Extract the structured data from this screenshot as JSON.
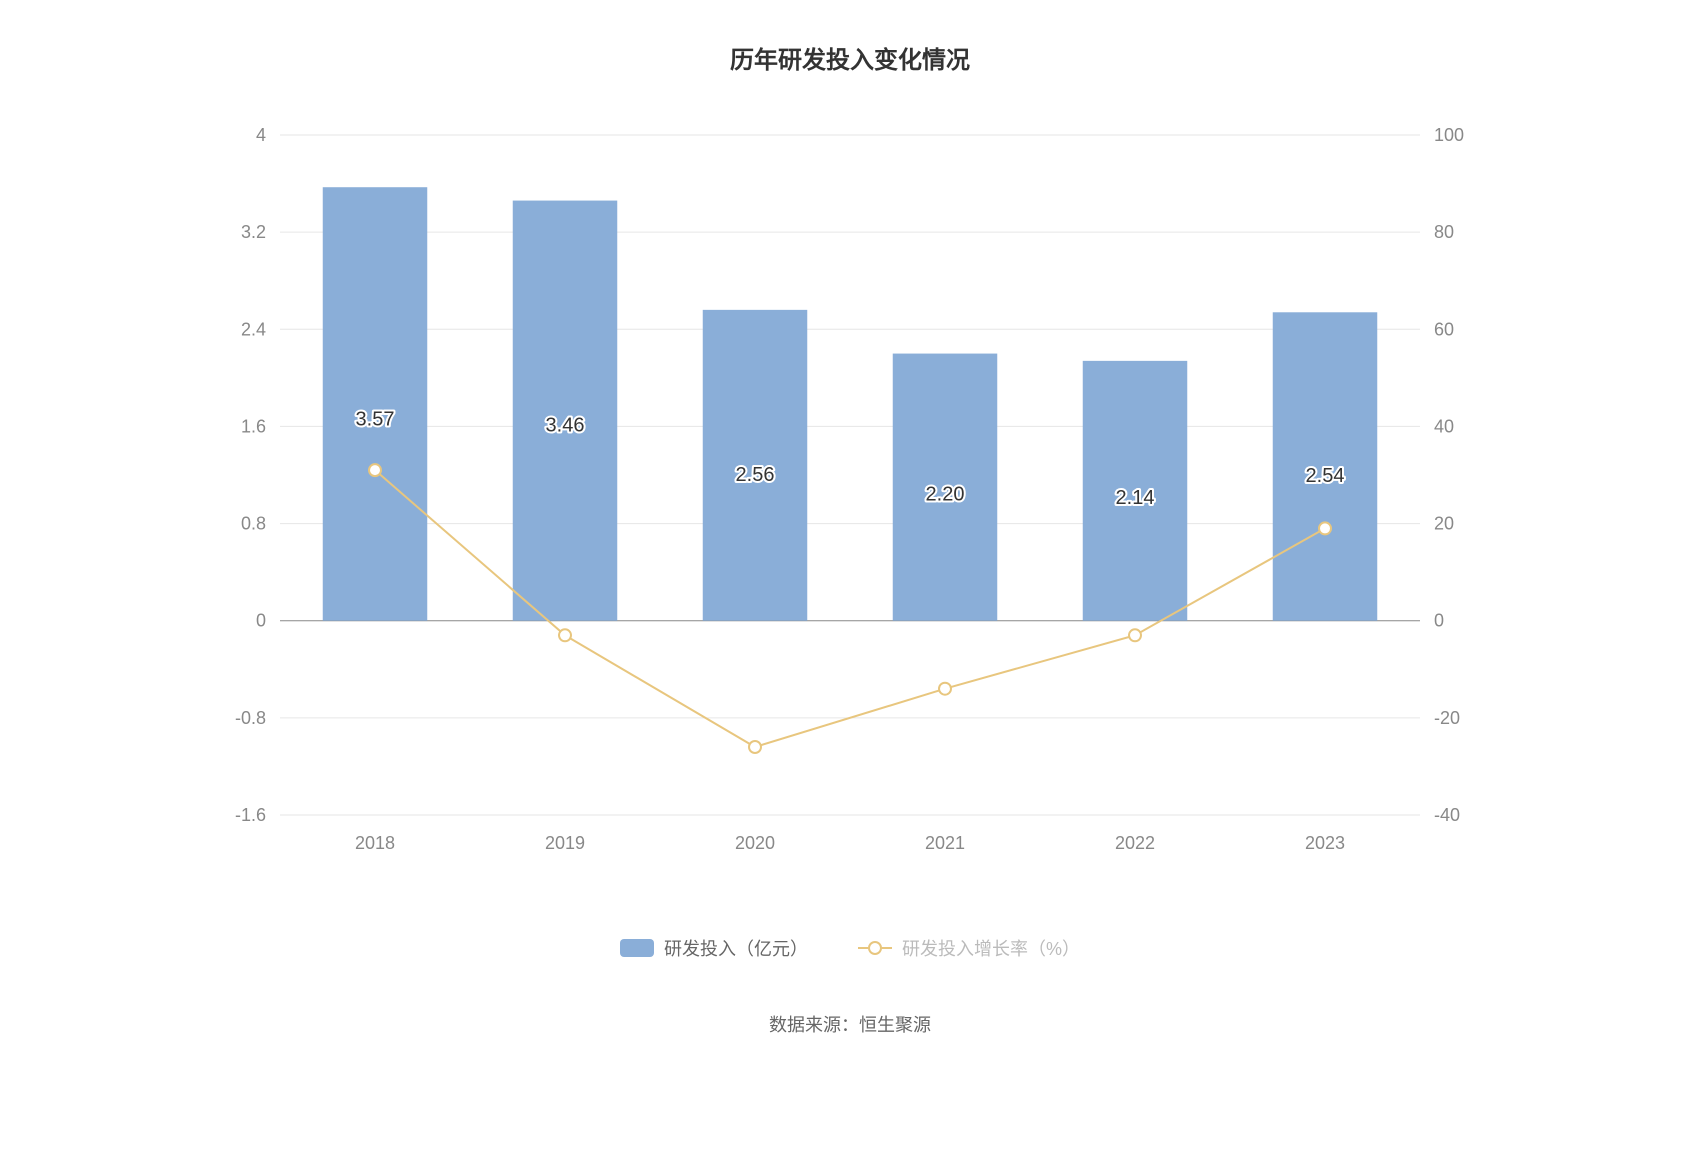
{
  "title": "历年研发投入变化情况",
  "chart": {
    "type": "bar+line",
    "categories": [
      "2018",
      "2019",
      "2020",
      "2021",
      "2022",
      "2023"
    ],
    "bars": {
      "label": "研发投入（亿元）",
      "values": [
        3.57,
        3.46,
        2.56,
        2.2,
        2.14,
        2.54
      ],
      "value_labels": [
        "3.57",
        "3.46",
        "2.56",
        "2.20",
        "2.14",
        "2.54"
      ],
      "color": "#8aaed8",
      "bar_width_ratio": 0.55
    },
    "line": {
      "label": "研发投入增长率（%）",
      "values": [
        31,
        -3,
        -26,
        -14,
        -3,
        19
      ],
      "color": "#e8c67e",
      "marker_fill": "#ffffff",
      "marker_radius": 6,
      "line_width": 2
    },
    "left_axis": {
      "min": -1.6,
      "max": 4,
      "ticks": [
        -1.6,
        -0.8,
        0,
        0.8,
        1.6,
        2.4,
        3.2,
        4
      ],
      "tick_labels": [
        "-1.6",
        "-0.8",
        "0",
        "0.8",
        "1.6",
        "2.4",
        "3.2",
        "4"
      ]
    },
    "right_axis": {
      "min": -40,
      "max": 100,
      "ticks": [
        -40,
        -20,
        0,
        20,
        40,
        60,
        80,
        100
      ],
      "tick_labels": [
        "-40",
        "-20",
        "0",
        "20",
        "40",
        "60",
        "80",
        "100"
      ]
    },
    "background_color": "#ffffff",
    "grid_color": "#e6e6e6",
    "zero_line_color": "#888888",
    "axis_label_color": "#888888",
    "axis_fontsize": 18,
    "value_fontsize": 20,
    "title_fontsize": 24
  },
  "legend": {
    "bar_label": "研发投入（亿元）",
    "line_label": "研发投入增长率（%）",
    "bar_text_color": "#666666",
    "line_text_color": "#bbbbbb"
  },
  "source": "数据来源：恒生聚源"
}
